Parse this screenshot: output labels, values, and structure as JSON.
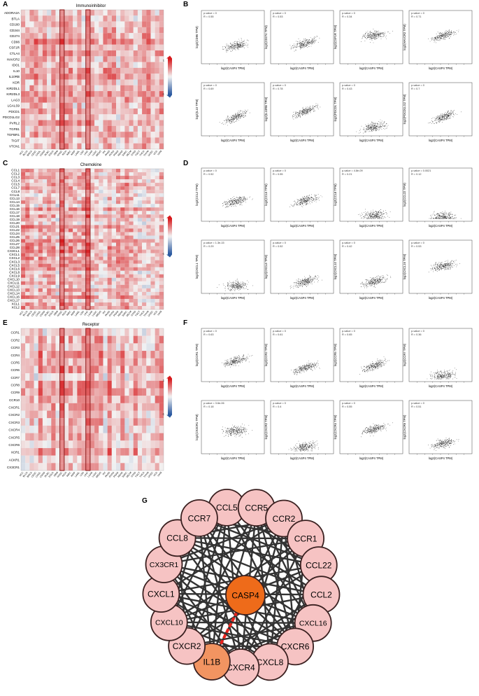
{
  "panel_letters": [
    "A",
    "B",
    "C",
    "D",
    "E",
    "F",
    "G"
  ],
  "heatmap_common": {
    "cancer_types": [
      "ACC",
      "BLCA",
      "BRCA",
      "CESC",
      "CHOL",
      "COAD",
      "DLBC",
      "ESCA",
      "GBM",
      "HNSC",
      "KICH",
      "KIRC",
      "KIRP",
      "LAML",
      "LGG",
      "LIHC",
      "LUAD",
      "LUSC",
      "MESO",
      "OV",
      "PAAD",
      "PCPG",
      "PRAD",
      "READ",
      "SARC",
      "SKCM",
      "STAD",
      "TGCT",
      "THCA",
      "THYM",
      "UCEC",
      "UCS",
      "UVM"
    ],
    "highlighted_columns": [
      9,
      15
    ],
    "colors": {
      "pos": "#d7191c",
      "neg": "#2c5aa0",
      "zero": "#f3f3f3",
      "outline": "#8b1a1a"
    },
    "legend_ticks": [
      "1",
      "-1"
    ]
  },
  "heatmaps": [
    {
      "letter": "A",
      "title": "Immunoinhibitor",
      "genes": [
        "ADORA2A",
        "BTLA",
        "CD160",
        "CD244",
        "CD274",
        "CD96",
        "CSF1R",
        "CTLA4",
        "HAVCR2",
        "IDO1",
        "IL10",
        "IL10RB",
        "KDR",
        "KIR2DL1",
        "KIR2DL3",
        "LAG3",
        "LGALS9",
        "PDCD1",
        "PDCD1LG2",
        "PVRL2",
        "TGFB1",
        "TGFBR1",
        "TIGIT",
        "VTCN1"
      ]
    },
    {
      "letter": "C",
      "title": "Chemokine",
      "genes": [
        "CCL1",
        "CCL2",
        "CCL3",
        "CCL4",
        "CCL5",
        "CCL7",
        "CCL8",
        "CCL11",
        "CCL13",
        "CCL14",
        "CCL15",
        "CCL16",
        "CCL17",
        "CCL18",
        "CCL19",
        "CCL20",
        "CCL21",
        "CCL22",
        "CCL24",
        "CCL25",
        "CCL26",
        "CCL27",
        "CCL28",
        "CX3CL1",
        "CXCL1",
        "CXCL2",
        "CXCL3",
        "CXCL5",
        "CXCL6",
        "CXCL8",
        "CXCL9",
        "CXCL10",
        "CXCL11",
        "CXCL12",
        "CXCL13",
        "CXCL14",
        "CXCL16",
        "CXCL17",
        "XCL1",
        "XCL2"
      ]
    },
    {
      "letter": "E",
      "title": "Receptor",
      "genes": [
        "CCR1",
        "CCR2",
        "CCR3",
        "CCR4",
        "CCR5",
        "CCR6",
        "CCR7",
        "CCR8",
        "CCR9",
        "CCR10",
        "CXCR1",
        "CXCR2",
        "CXCR3",
        "CXCR4",
        "CXCR5",
        "CXCR6",
        "XCR1",
        "ACKR1",
        "CX3CR1"
      ]
    }
  ],
  "scatter_panels": [
    {
      "letter": "B",
      "xlabel": "log2(CASP4 TPM)",
      "plots": [
        {
          "ylabel": "log2(CD96 TPM)",
          "p": "p-value = 0",
          "r": "R = 0.55",
          "rv": 0.55,
          "base": 0.25,
          "spread": 0.45
        },
        {
          "ylabel": "log2(CD274 TPM)",
          "p": "p-value = 0",
          "r": "R = 0.53",
          "rv": 0.53,
          "base": 0.3,
          "spread": 0.5
        },
        {
          "ylabel": "log2(CSF1R TPM)",
          "p": "p-value = 0",
          "r": "R = 0.34",
          "rv": 0.34,
          "base": 0.55,
          "spread": 0.35
        },
        {
          "ylabel": "log2(HAVCR2 TPM)",
          "p": "p-value = 0",
          "r": "R = 0.71",
          "rv": 0.71,
          "base": 0.45,
          "spread": 0.45
        },
        {
          "ylabel": "log2(IL10 TPM)",
          "p": "p-value = 0",
          "r": "R = 0.69",
          "rv": 0.69,
          "base": 0.2,
          "spread": 0.55
        },
        {
          "ylabel": "log2(IL10RB TPM)",
          "p": "p-value = 0",
          "r": "R = 0.78",
          "rv": 0.78,
          "base": 0.35,
          "spread": 0.45
        },
        {
          "ylabel": "log2(PDCD1 TPM)",
          "p": "p-value = 0",
          "r": "R = 0.43",
          "rv": 0.43,
          "base": 0.08,
          "spread": 0.4
        },
        {
          "ylabel": "log2(PDCD1LG2 TPM)",
          "p": "p-value = 0",
          "r": "R = 0.7",
          "rv": 0.7,
          "base": 0.2,
          "spread": 0.55
        }
      ]
    },
    {
      "letter": "D",
      "xlabel": "log2(CASP4 TPM)",
      "plots": [
        {
          "ylabel": "log2(CCL2 TPM)",
          "p": "p-value = 0",
          "r": "R = 0.52",
          "rv": 0.52,
          "base": 0.3,
          "spread": 0.45
        },
        {
          "ylabel": "log2(CCL5 TPM)",
          "p": "p-value = 0",
          "r": "R = 0.55",
          "rv": 0.55,
          "base": 0.3,
          "spread": 0.5
        },
        {
          "ylabel": "log2(CCL8 TPM)",
          "p": "p-value = 4.8e-09",
          "r": "R = 0.21",
          "rv": 0.21,
          "base": 0.06,
          "spread": 0.35
        },
        {
          "ylabel": "log2(CCL22 TPM)",
          "p": "p-value = 0.0021",
          "r": "R = 0.12",
          "rv": 0.12,
          "base": 0.05,
          "spread": 0.15
        },
        {
          "ylabel": "log2(CXCL1 TPM)",
          "p": "p-value = 1.3e-15",
          "r": "R = 0.29",
          "rv": 0.29,
          "base": 0.08,
          "spread": 0.35
        },
        {
          "ylabel": "log2(CXCL8 TPM)",
          "p": "p-value = 0",
          "r": "R = 0.52",
          "rv": 0.52,
          "base": 0.1,
          "spread": 0.5
        },
        {
          "ylabel": "log2(CXCL10 TPM)",
          "p": "p-value = 0",
          "r": "R = 0.42",
          "rv": 0.42,
          "base": 0.12,
          "spread": 0.55
        },
        {
          "ylabel": "log2(CXCL16 TPM)",
          "p": "p-value = 0",
          "r": "R = 0.53",
          "rv": 0.53,
          "base": 0.5,
          "spread": 0.35
        }
      ]
    },
    {
      "letter": "F",
      "xlabel": "log2(CASP4 TPM)",
      "plots": [
        {
          "ylabel": "log2(CCR1 TPM)",
          "p": "p-value = 0",
          "r": "R = 0.63",
          "rv": 0.63,
          "base": 0.3,
          "spread": 0.45
        },
        {
          "ylabel": "log2(CCR2 TPM)",
          "p": "p-value = 0",
          "r": "R = 0.61",
          "rv": 0.61,
          "base": 0.12,
          "spread": 0.5
        },
        {
          "ylabel": "log2(CCR5 TPM)",
          "p": "p-value = 0",
          "r": "R = 0.65",
          "rv": 0.65,
          "base": 0.15,
          "spread": 0.55
        },
        {
          "ylabel": "log2(CCR7 TPM)",
          "p": "p-value = 0",
          "r": "R = 0.36",
          "rv": 0.36,
          "base": 0.05,
          "spread": 0.25
        },
        {
          "ylabel": "log2(CX3CR1 TPM)",
          "p": "p-value = 3.6e-06",
          "r": "R = 0.18",
          "rv": 0.18,
          "base": 0.45,
          "spread": 0.35
        },
        {
          "ylabel": "log2(CXCR2 TPM)",
          "p": "p-value = 0",
          "r": "R = 0.4",
          "rv": 0.4,
          "base": 0.05,
          "spread": 0.35
        },
        {
          "ylabel": "log2(CXCR4 TPM)",
          "p": "p-value = 0",
          "r": "R = 0.55",
          "rv": 0.55,
          "base": 0.4,
          "spread": 0.45
        },
        {
          "ylabel": "log2(CXCR6 TPM)",
          "p": "p-value = 0",
          "r": "R = 0.51",
          "rv": 0.51,
          "base": 0.08,
          "spread": 0.45
        }
      ]
    }
  ],
  "network": {
    "letter": "G",
    "ring_nodes": [
      "CCL5",
      "CCR5",
      "CCR2",
      "CCR1",
      "CCL22",
      "CCL2",
      "CXCL16",
      "CXCR6",
      "CXCL8",
      "CXCR4",
      "IL1B",
      "CXCR2",
      "CXCL10",
      "CXCL1",
      "CX3CR1",
      "CCL8",
      "CCR7"
    ],
    "hub_nodes": [
      "CASP4"
    ],
    "highlighted_edge": [
      "CASP4",
      "IL1B"
    ],
    "colors": {
      "node": "#f6c3c3",
      "hub": "#ee6b1a",
      "il1b": "#f29461",
      "edge": "#333333",
      "highlight_edge": "#e8231c"
    }
  }
}
